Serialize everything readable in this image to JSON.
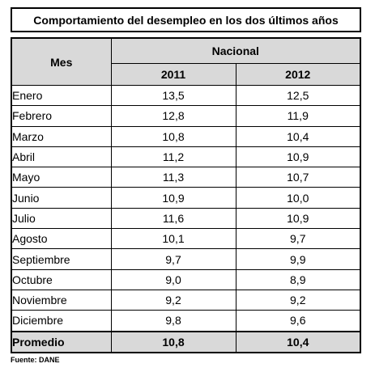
{
  "title": "Comportamiento del desempleo en los dos últimos años",
  "table": {
    "month_header": "Mes",
    "group_header": "Nacional",
    "year_headers": [
      "2011",
      "2012"
    ],
    "rows": [
      {
        "month": "Enero",
        "v2011": "13,5",
        "v2012": "12,5"
      },
      {
        "month": "Febrero",
        "v2011": "12,8",
        "v2012": "11,9"
      },
      {
        "month": "Marzo",
        "v2011": "10,8",
        "v2012": "10,4"
      },
      {
        "month": "Abril",
        "v2011": "11,2",
        "v2012": "10,9"
      },
      {
        "month": "Mayo",
        "v2011": "11,3",
        "v2012": "10,7"
      },
      {
        "month": "Junio",
        "v2011": "10,9",
        "v2012": "10,0"
      },
      {
        "month": "Julio",
        "v2011": "11,6",
        "v2012": "10,9"
      },
      {
        "month": "Agosto",
        "v2011": "10,1",
        "v2012": "9,7"
      },
      {
        "month": "Septiembre",
        "v2011": "9,7",
        "v2012": "9,9"
      },
      {
        "month": "Octubre",
        "v2011": "9,0",
        "v2012": "8,9"
      },
      {
        "month": "Noviembre",
        "v2011": "9,2",
        "v2012": "9,2"
      },
      {
        "month": "Diciembre",
        "v2011": "9,8",
        "v2012": "9,6"
      }
    ],
    "average": {
      "label": "Promedio",
      "v2011": "10,8",
      "v2012": "10,4"
    }
  },
  "source": "Fuente: DANE",
  "colors": {
    "header_fill": "#d9d9d9",
    "border": "#000000"
  }
}
